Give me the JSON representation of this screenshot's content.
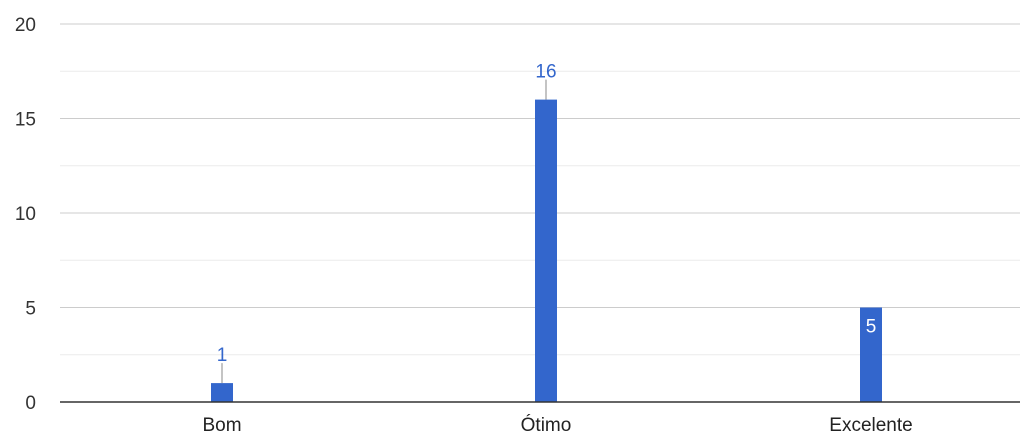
{
  "chart_data": {
    "type": "bar",
    "categories": [
      "Bom",
      "Ótimo",
      "Excelente"
    ],
    "values": [
      1,
      16,
      5
    ],
    "title": "",
    "xlabel": "",
    "ylabel": "",
    "ylim": [
      0,
      20
    ],
    "yticks": [
      0,
      5,
      10,
      15,
      20
    ],
    "grid": true,
    "bar_color": "#3366cc",
    "label_color_outside": "#3366cc",
    "label_color_inside": "#ffffff"
  }
}
